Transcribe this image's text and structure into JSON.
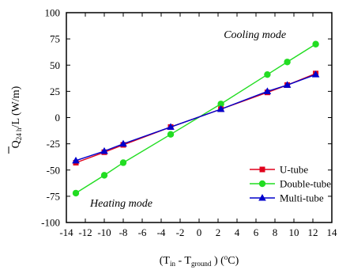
{
  "chart_data": {
    "type": "line",
    "title": "",
    "xlim": [
      -14,
      14
    ],
    "ylim": [
      -100,
      100
    ],
    "x_ticks": [
      -14,
      -12,
      -10,
      -8,
      -6,
      -4,
      -2,
      0,
      2,
      4,
      6,
      8,
      10,
      12,
      14
    ],
    "y_ticks": [
      100,
      75,
      50,
      25,
      0,
      -25,
      -50,
      -75,
      -100
    ],
    "x_tick_labels": [
      "-14",
      "-12",
      "-10",
      "-8",
      "-6",
      "-4",
      "-2",
      "0",
      "2",
      "4",
      "6",
      "8",
      "10",
      "12",
      "14"
    ],
    "y_tick_labels": [
      "100",
      "75",
      "50",
      "25",
      "0",
      "-25",
      "-50",
      "-75",
      "-100"
    ],
    "grid": false,
    "legend_position": "lower-right",
    "xlabel": "(T<sub>in</sub> - T<sub>ground</sub>) (°C)",
    "ylabel": "Q̄<sub>24 h</sub>/L (W/m)",
    "annotations": [
      {
        "text": "Cooling mode",
        "x": 2.6,
        "y": 76
      },
      {
        "text": "Heating mode",
        "x": -11.5,
        "y": -85
      }
    ],
    "series": [
      {
        "name": "U-tube",
        "color": "#e0001b",
        "marker": "square",
        "x": [
          -13,
          -10,
          -8,
          -3,
          2.3,
          7.2,
          9.3,
          12.3
        ],
        "y": [
          -43,
          -33,
          -26,
          -9,
          8,
          24,
          31,
          42
        ]
      },
      {
        "name": "Double-tube",
        "color": "#22dd22",
        "marker": "circle",
        "x": [
          -13,
          -10,
          -8,
          -3,
          2.3,
          7.2,
          9.3,
          12.3
        ],
        "y": [
          -72,
          -55,
          -43,
          -16,
          13,
          41,
          53,
          70
        ]
      },
      {
        "name": "Multi-tube",
        "color": "#0000cc",
        "marker": "triangle",
        "x": [
          -13,
          -10,
          -8,
          -3,
          2.3,
          7.2,
          9.3,
          12.3
        ],
        "y": [
          -41,
          -32,
          -25,
          -9,
          8,
          25,
          31,
          41
        ]
      }
    ]
  }
}
